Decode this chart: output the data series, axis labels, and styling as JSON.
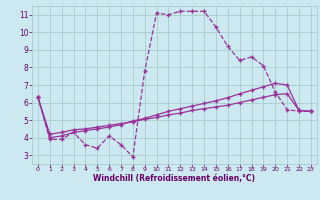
{
  "bg_color": "#cce8f0",
  "grid_color": "#aacccc",
  "line_color": "#993399",
  "marker": "+",
  "xlabel": "Windchill (Refroidissement éolien,°C)",
  "xlabel_color": "#660066",
  "tick_color": "#660066",
  "ylim": [
    2.5,
    11.5
  ],
  "xlim": [
    -0.5,
    23.5
  ],
  "yticks": [
    3,
    4,
    5,
    6,
    7,
    8,
    9,
    10,
    11
  ],
  "xticks": [
    0,
    1,
    2,
    3,
    4,
    5,
    6,
    7,
    8,
    9,
    10,
    11,
    12,
    13,
    14,
    15,
    16,
    17,
    18,
    19,
    20,
    21,
    22,
    23
  ],
  "line1_x": [
    0,
    1,
    2,
    3,
    4,
    5,
    6,
    7,
    8,
    9,
    10,
    11,
    12,
    13,
    14,
    15,
    16,
    17,
    18,
    19,
    20,
    21,
    22,
    23
  ],
  "line1_y": [
    6.3,
    3.9,
    3.9,
    4.3,
    3.6,
    3.4,
    4.1,
    3.6,
    2.9,
    7.8,
    11.1,
    11.0,
    11.2,
    11.2,
    11.2,
    10.3,
    9.2,
    8.4,
    8.6,
    8.1,
    6.6,
    5.6,
    5.5,
    5.5
  ],
  "line2_x": [
    0,
    1,
    2,
    3,
    4,
    5,
    6,
    7,
    8,
    9,
    10,
    11,
    12,
    13,
    14,
    15,
    16,
    17,
    18,
    19,
    20,
    21,
    22,
    23
  ],
  "line2_y": [
    6.3,
    4.2,
    4.3,
    4.45,
    4.5,
    4.6,
    4.7,
    4.8,
    4.9,
    5.05,
    5.15,
    5.3,
    5.4,
    5.55,
    5.65,
    5.75,
    5.85,
    6.0,
    6.15,
    6.3,
    6.45,
    6.5,
    5.55,
    5.5
  ],
  "line3_x": [
    0,
    1,
    2,
    3,
    4,
    5,
    6,
    7,
    8,
    9,
    10,
    11,
    12,
    13,
    14,
    15,
    16,
    17,
    18,
    19,
    20,
    21,
    22,
    23
  ],
  "line3_y": [
    6.3,
    4.0,
    4.1,
    4.3,
    4.4,
    4.5,
    4.6,
    4.75,
    4.95,
    5.1,
    5.3,
    5.5,
    5.65,
    5.8,
    5.95,
    6.1,
    6.28,
    6.5,
    6.7,
    6.9,
    7.1,
    7.0,
    5.55,
    5.5
  ]
}
